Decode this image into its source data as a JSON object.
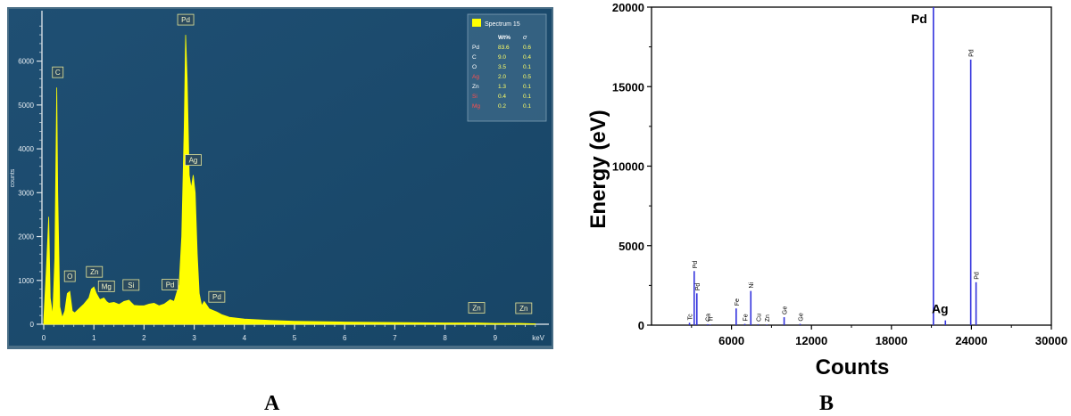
{
  "chart_data": [
    {
      "type": "line",
      "panel_label": "A",
      "xlabel": "keV",
      "ylabel": "counts",
      "xlim": [
        0,
        10
      ],
      "ylim": [
        0,
        7200
      ],
      "xticks": [
        "0",
        "1",
        "2",
        "3",
        "4",
        "5",
        "6",
        "7",
        "8",
        "9"
      ],
      "yticks": [
        "0",
        "1000",
        "2000",
        "3000",
        "4000",
        "5000",
        "6000"
      ],
      "grid": false,
      "spectrum_color": "#ffff00",
      "background_color": "#1f4f73",
      "spectrum": {
        "x": [
          0,
          0.05,
          0.1,
          0.13,
          0.18,
          0.22,
          0.26,
          0.28,
          0.32,
          0.37,
          0.42,
          0.47,
          0.52,
          0.57,
          0.62,
          0.7,
          0.8,
          0.9,
          0.95,
          1.0,
          1.05,
          1.12,
          1.2,
          1.25,
          1.3,
          1.4,
          1.5,
          1.6,
          1.7,
          1.74,
          1.8,
          1.9,
          2.0,
          2.1,
          2.2,
          2.3,
          2.4,
          2.52,
          2.6,
          2.7,
          2.75,
          2.8,
          2.83,
          2.86,
          2.9,
          2.94,
          2.98,
          3.02,
          3.06,
          3.1,
          3.15,
          3.2,
          3.3,
          3.45,
          3.55,
          3.7,
          4.0,
          4.5,
          5.0,
          6.0,
          7.0,
          8.0,
          8.63,
          9.0,
          9.5,
          9.8
        ],
        "y": [
          100,
          1200,
          2450,
          600,
          200,
          1500,
          5400,
          3000,
          400,
          150,
          300,
          700,
          750,
          300,
          260,
          350,
          460,
          600,
          800,
          850,
          700,
          560,
          600,
          520,
          480,
          500,
          450,
          520,
          550,
          500,
          430,
          420,
          420,
          460,
          480,
          420,
          460,
          560,
          520,
          900,
          2000,
          4500,
          6600,
          5600,
          3400,
          3100,
          3400,
          3000,
          1600,
          700,
          420,
          520,
          350,
          280,
          220,
          160,
          120,
          90,
          70,
          50,
          40,
          30,
          30,
          20,
          20,
          10
        ]
      },
      "peak_labels": [
        {
          "label": "C",
          "x": 0.28,
          "y": 5400
        },
        {
          "label": "O",
          "x": 0.52,
          "y": 750
        },
        {
          "label": "Zn",
          "x": 1.01,
          "y": 850
        },
        {
          "label": "Mg",
          "x": 1.25,
          "y": 520
        },
        {
          "label": "Si",
          "x": 1.74,
          "y": 550
        },
        {
          "label": "Pd",
          "x": 2.52,
          "y": 560
        },
        {
          "label": "Pd",
          "x": 2.83,
          "y": 6600
        },
        {
          "label": "Ag",
          "x": 2.98,
          "y": 3400
        },
        {
          "label": "Pd",
          "x": 3.45,
          "y": 280
        },
        {
          "label": "Zn",
          "x": 8.63,
          "y": 30
        },
        {
          "label": "Zn",
          "x": 9.57,
          "y": 20
        }
      ],
      "legend": {
        "placement": "top-right",
        "entry": "Spectrum 15",
        "columns": [
          "Wt%",
          "σ"
        ],
        "rows": [
          {
            "element": "Pd",
            "wt": "83.6",
            "sigma": "0.6",
            "highlight": false
          },
          {
            "element": "C",
            "wt": "9.0",
            "sigma": "0.4",
            "highlight": false
          },
          {
            "element": "O",
            "wt": "3.5",
            "sigma": "0.1",
            "highlight": false
          },
          {
            "element": "Ag",
            "wt": "2.0",
            "sigma": "0.5",
            "highlight": true
          },
          {
            "element": "Zn",
            "wt": "1.3",
            "sigma": "0.1",
            "highlight": false
          },
          {
            "element": "Si",
            "wt": "0.4",
            "sigma": "0.1",
            "highlight": true
          },
          {
            "element": "Mg",
            "wt": "0.2",
            "sigma": "0.1",
            "highlight": true
          }
        ]
      }
    },
    {
      "type": "bar",
      "panel_label": "B",
      "xlabel": "Counts",
      "ylabel": "Energy (eV)",
      "xlim": [
        0,
        30000
      ],
      "ylim": [
        0,
        20000
      ],
      "xticks": [
        6000,
        12000,
        18000,
        24000,
        30000
      ],
      "yticks": [
        0,
        5000,
        10000,
        15000,
        20000
      ],
      "bar_color": "#3333dd",
      "bars": [
        {
          "label": "Tc",
          "x": 2850,
          "y": 150,
          "style": "small-rot"
        },
        {
          "label": "Pd",
          "x": 3200,
          "y": 3400,
          "style": "small-rot"
        },
        {
          "label": "Pd",
          "x": 3400,
          "y": 2000,
          "style": "small-rot"
        },
        {
          "label": "Ca",
          "x": 4200,
          "y": 60,
          "style": "small-rot"
        },
        {
          "label": "Ti",
          "x": 4400,
          "y": 40,
          "style": "small-rot"
        },
        {
          "label": "Fe",
          "x": 6350,
          "y": 1050,
          "style": "small-rot"
        },
        {
          "label": "Fe",
          "x": 7000,
          "y": 80,
          "style": "small-rot"
        },
        {
          "label": "Ni",
          "x": 7450,
          "y": 2150,
          "style": "small-rot"
        },
        {
          "label": "Cu",
          "x": 8000,
          "y": 60,
          "style": "small-rot"
        },
        {
          "label": "Zn",
          "x": 8650,
          "y": 40,
          "style": "small-rot"
        },
        {
          "label": "Ge",
          "x": 9950,
          "y": 500,
          "style": "small-rot"
        },
        {
          "label": "Ge",
          "x": 11150,
          "y": 80,
          "style": "small-rot"
        },
        {
          "label": "Pd",
          "x": 21150,
          "y": 20000,
          "style": "big"
        },
        {
          "label": "Ag",
          "x": 22050,
          "y": 300,
          "style": "big"
        },
        {
          "label": "Pd",
          "x": 23950,
          "y": 16700,
          "style": "small-rot"
        },
        {
          "label": "Pd",
          "x": 24350,
          "y": 2700,
          "style": "small-rot"
        }
      ]
    }
  ],
  "captions": {
    "a": "A",
    "b": "B"
  }
}
